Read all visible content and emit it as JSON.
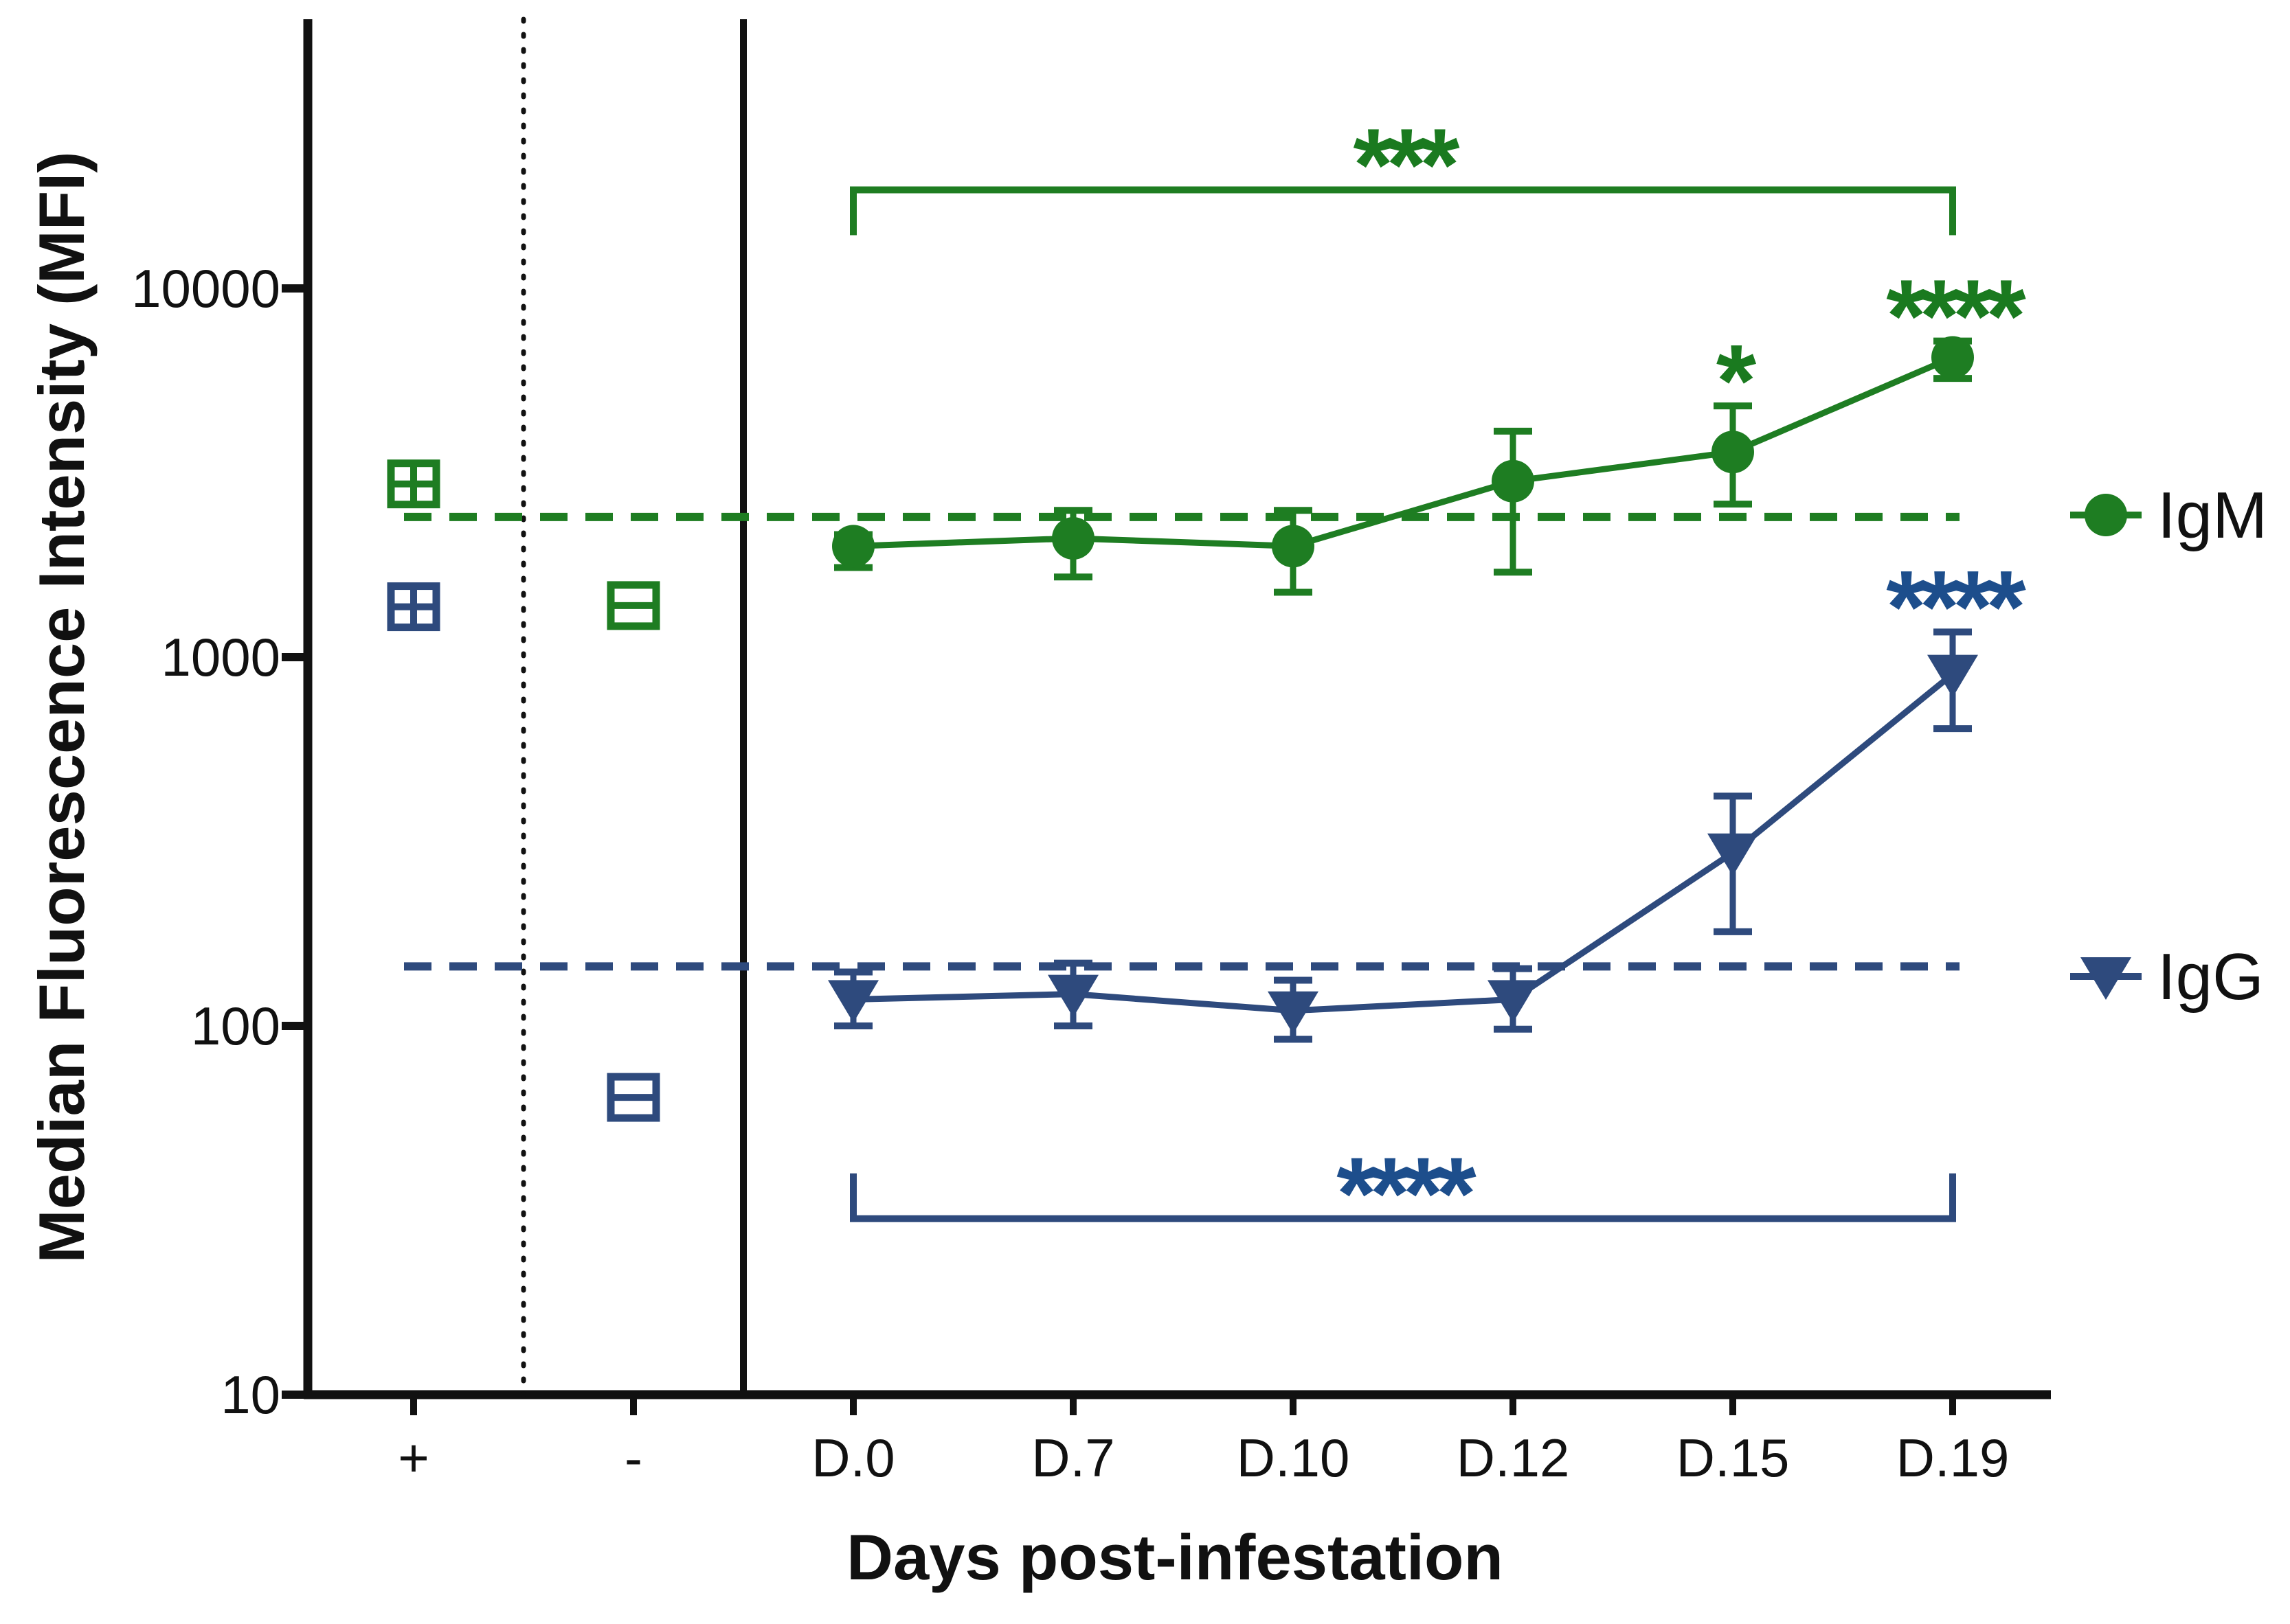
{
  "figure": {
    "background": "#ffffff",
    "axis_color": "#111111"
  },
  "chart_data": {
    "type": "line",
    "scale_y": "log10",
    "ylim": [
      10,
      50000
    ],
    "y_ticks": [
      10000,
      1000,
      100,
      10
    ],
    "y_tick_labels": [
      "10000",
      "1000",
      "100",
      "10"
    ],
    "ylabel": "Median Fluorescence Intensity (MFI)",
    "xlabel": "Days post-infestation",
    "categories": [
      "+",
      "-",
      "D.0",
      "D.7",
      "D.10",
      "D.12",
      "D.15",
      "D.19"
    ],
    "timepoints": [
      "D.0",
      "D.7",
      "D.10",
      "D.12",
      "D.15",
      "D.19"
    ],
    "separators": {
      "dotted_between": [
        "+",
        "-"
      ],
      "solid_between": [
        "-",
        "D.0"
      ]
    },
    "series": [
      {
        "name": "IgM",
        "marker": "circle",
        "color": "#1e7d22",
        "sig_color": "#1a7a1f",
        "values": [
          2000,
          2100,
          2000,
          3000,
          3600,
          6500
        ],
        "err_lo": [
          1750,
          1650,
          1500,
          1700,
          2600,
          5700
        ],
        "err_hi": [
          2150,
          2500,
          2500,
          4100,
          4800,
          7200
        ],
        "controls": {
          "positive": 2950,
          "negative": 1380
        },
        "cutoff": 2400,
        "significance": [
          {
            "x": "D.15",
            "label": "*"
          },
          {
            "x": "D.19",
            "label": "****"
          }
        ],
        "bracket": {
          "from": "D.0",
          "to": "D.19",
          "label": "***",
          "mfi": 18500
        }
      },
      {
        "name": "IgG",
        "marker": "triangle-down",
        "color": "#2e4a7d",
        "sig_color": "#1d4e8c",
        "values": [
          118,
          122,
          110,
          118,
          295,
          900
        ],
        "err_lo": [
          100,
          100,
          92,
          98,
          180,
          640
        ],
        "err_hi": [
          140,
          148,
          133,
          143,
          420,
          1170
        ],
        "controls": {
          "positive": 1370,
          "negative": 64
        },
        "cutoff": 145,
        "significance": [
          {
            "x": "D.19",
            "label": "****"
          }
        ],
        "bracket": {
          "from": "D.0",
          "to": "D.19",
          "label": "****",
          "mfi": 30
        }
      }
    ],
    "control_markers": {
      "positive": "square-4pane",
      "negative": "square-2pane"
    },
    "legend": [
      {
        "label": "IgM",
        "marker": "circle",
        "color": "#1e7d22"
      },
      {
        "label": "IgG",
        "marker": "triangle-down",
        "color": "#2e4a7d"
      }
    ],
    "legend_position": "right",
    "grid": false
  }
}
